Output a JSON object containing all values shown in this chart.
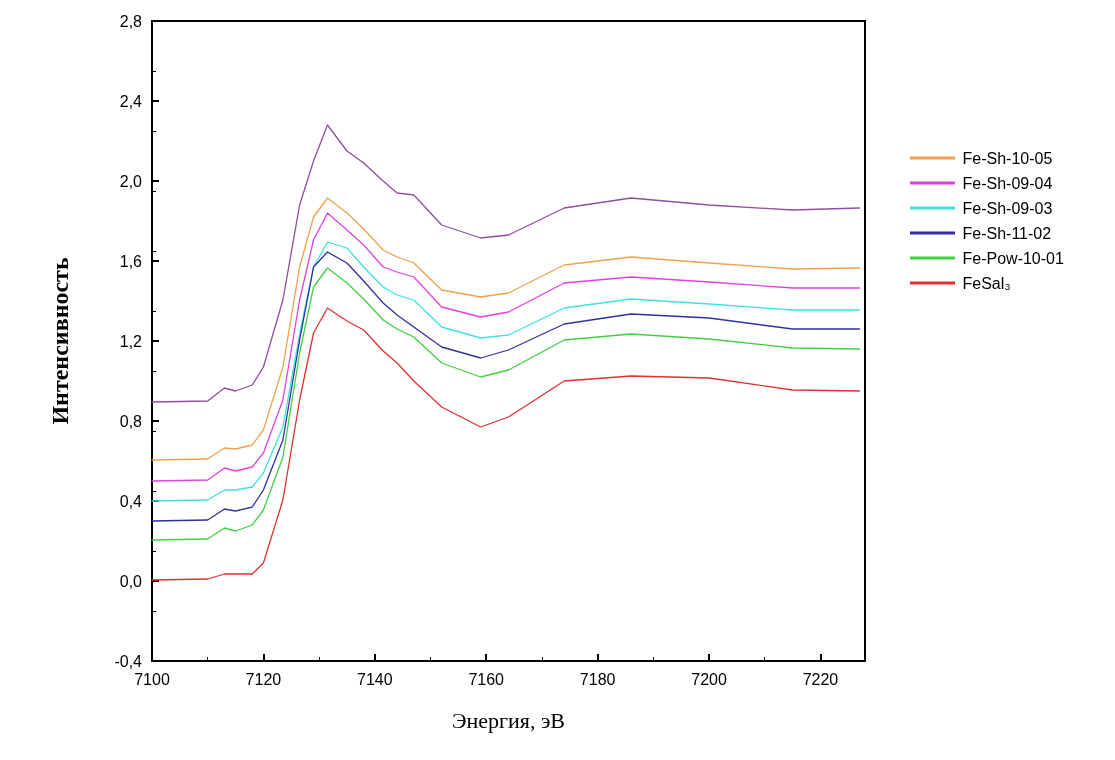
{
  "chart_data": {
    "type": "line",
    "xlabel": "Энергия, эВ",
    "ylabel": "Интенсивность",
    "x": [
      7100,
      7110,
      7113,
      7115,
      7118,
      7120,
      7123.5,
      7126.5,
      7129,
      7131.5,
      7135,
      7138,
      7141.5,
      7144,
      7147,
      7152,
      7159,
      7164,
      7174,
      7186,
      7200,
      7215,
      7227
    ],
    "series": [
      {
        "color": "#8e4f9e",
        "values": [
          0.895,
          0.9,
          0.965,
          0.95,
          0.98,
          1.07,
          1.405,
          1.88,
          2.1,
          2.28,
          2.15,
          2.09,
          2.0,
          1.94,
          1.93,
          1.78,
          1.715,
          1.73,
          1.865,
          1.915,
          1.88,
          1.855,
          1.865
        ]
      },
      {
        "name": "Fe-Sh-10-05",
        "color": "#f0a050",
        "values": [
          0.605,
          0.61,
          0.665,
          0.66,
          0.68,
          0.755,
          1.07,
          1.57,
          1.82,
          1.915,
          1.84,
          1.76,
          1.655,
          1.62,
          1.59,
          1.455,
          1.42,
          1.44,
          1.58,
          1.62,
          1.59,
          1.56,
          1.565
        ]
      },
      {
        "name": "Fe-Sh-09-04",
        "color": "#e040e0",
        "values": [
          0.5,
          0.505,
          0.565,
          0.55,
          0.57,
          0.64,
          0.905,
          1.405,
          1.705,
          1.84,
          1.755,
          1.68,
          1.57,
          1.545,
          1.52,
          1.37,
          1.32,
          1.345,
          1.49,
          1.52,
          1.495,
          1.465,
          1.465
        ]
      },
      {
        "name": "Fe-Sh-09-03",
        "color": "#40e0e0",
        "values": [
          0.4,
          0.405,
          0.455,
          0.455,
          0.47,
          0.54,
          0.77,
          1.235,
          1.57,
          1.695,
          1.665,
          1.57,
          1.47,
          1.43,
          1.405,
          1.27,
          1.215,
          1.23,
          1.365,
          1.41,
          1.385,
          1.355,
          1.355
        ]
      },
      {
        "name": "Fe-Sh-11-02",
        "color": "#3030a0",
        "values": [
          0.3,
          0.305,
          0.36,
          0.35,
          0.37,
          0.455,
          0.705,
          1.205,
          1.57,
          1.645,
          1.59,
          1.5,
          1.39,
          1.33,
          1.27,
          1.17,
          1.115,
          1.155,
          1.285,
          1.335,
          1.315,
          1.26,
          1.26
        ]
      },
      {
        "name": "Fe-Pow-10-01",
        "color": "#40d040",
        "values": [
          0.205,
          0.21,
          0.265,
          0.25,
          0.28,
          0.355,
          0.62,
          1.14,
          1.47,
          1.565,
          1.49,
          1.41,
          1.305,
          1.26,
          1.22,
          1.09,
          1.02,
          1.055,
          1.205,
          1.235,
          1.21,
          1.165,
          1.16
        ]
      },
      {
        "name": "FeSal₃",
        "color": "#e03030",
        "values": [
          0.005,
          0.01,
          0.035,
          0.035,
          0.035,
          0.09,
          0.405,
          0.905,
          1.24,
          1.365,
          1.3,
          1.255,
          1.15,
          1.09,
          1.0,
          0.87,
          0.77,
          0.82,
          1.0,
          1.025,
          1.015,
          0.955,
          0.95
        ]
      }
    ],
    "xlim": [
      7100,
      7228
    ],
    "xticks": [
      7100,
      7120,
      7140,
      7160,
      7180,
      7200,
      7220
    ],
    "ylim": [
      -0.4,
      2.8
    ],
    "yticks": [
      {
        "value": -0.4,
        "label": "-0,4"
      },
      {
        "value": 0,
        "label": "0,0"
      },
      {
        "value": 0.4,
        "label": "0,4"
      },
      {
        "value": 0.8,
        "label": "0,8"
      },
      {
        "value": 1.2,
        "label": "1,2"
      },
      {
        "value": 1.6,
        "label": "1,6"
      },
      {
        "value": 2.0,
        "label": "2,0"
      },
      {
        "value": 2.4,
        "label": "2,4"
      },
      {
        "value": 2.8,
        "label": "2,8"
      }
    ],
    "grid": false,
    "legend": "right",
    "marker": "none",
    "line_style": "solid"
  }
}
